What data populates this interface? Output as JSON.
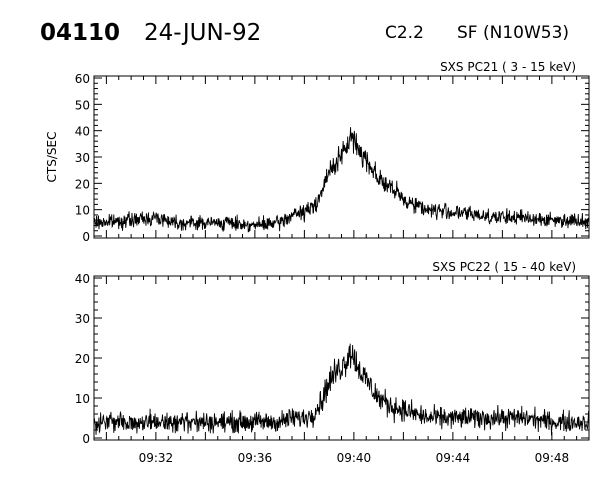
{
  "header": {
    "event_id": "04110",
    "date": "24-JUN-92",
    "goes_class": "C2.2",
    "flare_location": "SF (N10W53)"
  },
  "chart_data": [
    {
      "type": "line",
      "title": "SXS PC21  (  3 - 15 keV)",
      "ylabel": "CTS/SEC",
      "xlabel": "",
      "ylim": [
        0,
        60
      ],
      "y_ticks": [
        "0",
        "10",
        "20",
        "30",
        "40",
        "50",
        "60"
      ],
      "xlim": [
        "09:29:30",
        "09:49:30"
      ],
      "x_ticks": [],
      "series": [
        {
          "x": [
            "09:29:30",
            "09:31:00",
            "09:32:00",
            "09:33:00",
            "09:34:00",
            "09:35:00",
            "09:36:00",
            "09:37:00",
            "09:37:30",
            "09:38:00",
            "09:38:20",
            "09:38:40",
            "09:39:00",
            "09:39:20",
            "09:39:40",
            "09:39:50",
            "09:40:00",
            "09:40:20",
            "09:40:40",
            "09:41:00",
            "09:41:30",
            "09:42:00",
            "09:42:30",
            "09:43:00",
            "09:44:00",
            "09:45:00",
            "09:46:00",
            "09:47:00",
            "09:48:00",
            "09:49:30"
          ],
          "y": [
            5,
            6,
            7,
            5,
            5,
            5,
            4,
            5,
            8,
            9,
            11,
            16,
            24,
            29,
            32,
            38,
            36,
            31,
            27,
            22,
            18,
            14,
            12,
            10,
            9,
            8,
            7,
            7,
            6,
            6
          ]
        }
      ]
    },
    {
      "type": "line",
      "title": "SXS PC22  ( 15 - 40 keV)",
      "ylabel": "",
      "xlabel": "",
      "ylim": [
        0,
        40
      ],
      "y_ticks": [
        "0",
        "10",
        "20",
        "30",
        "40"
      ],
      "xlim": [
        "09:29:30",
        "09:49:30"
      ],
      "x_ticks": [
        "09:32",
        "09:36",
        "09:40",
        "09:44",
        "09:48"
      ],
      "series": [
        {
          "x": [
            "09:29:30",
            "09:31:00",
            "09:32:00",
            "09:33:00",
            "09:34:00",
            "09:35:00",
            "09:36:00",
            "09:37:00",
            "09:37:30",
            "09:38:00",
            "09:38:20",
            "09:38:40",
            "09:39:00",
            "09:39:20",
            "09:39:40",
            "09:39:50",
            "09:40:00",
            "09:40:20",
            "09:40:40",
            "09:41:00",
            "09:41:30",
            "09:42:00",
            "09:42:30",
            "09:43:00",
            "09:44:00",
            "09:45:00",
            "09:46:00",
            "09:47:00",
            "09:48:00",
            "09:49:30"
          ],
          "y": [
            4,
            4,
            4,
            4,
            4,
            4,
            4,
            4,
            5,
            5,
            6,
            9,
            14,
            17,
            19,
            22,
            20,
            16,
            13,
            10,
            8,
            7,
            6,
            5,
            5,
            5,
            5,
            5,
            4,
            4
          ]
        }
      ]
    }
  ]
}
